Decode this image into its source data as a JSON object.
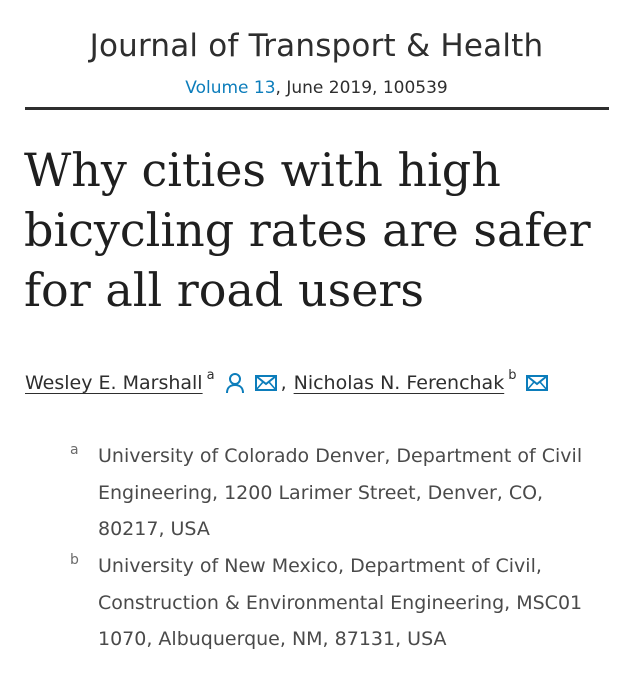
{
  "header": {
    "journal_name": "Journal of Transport & Health",
    "volume_link": "Volume 13",
    "volume_rest": ", June 2019, 100539"
  },
  "article": {
    "title": "Why cities with high bicycling rates are safer for all road users"
  },
  "authors": [
    {
      "name": "Wesley E. Marshall",
      "affiliation_mark": "a",
      "icons": [
        "person-icon",
        "mail-icon"
      ]
    },
    {
      "name": "Nicholas N. Ferenchak",
      "affiliation_mark": "b",
      "icons": [
        "mail-icon"
      ]
    }
  ],
  "author_separator": ",",
  "affiliations": [
    {
      "mark": "a",
      "text": "University of Colorado Denver, Department of Civil Engineering, 1200 Larimer Street, Denver, CO, 80217, USA"
    },
    {
      "mark": "b",
      "text": "University of New Mexico, Department of Civil, Construction & Environmental Engineering, MSC01 1070, Albuquerque, NM, 87131, USA"
    }
  ],
  "colors": {
    "link": "#0c7dbb",
    "text": "#2e2e2e",
    "icon": "#0c7dbb"
  }
}
